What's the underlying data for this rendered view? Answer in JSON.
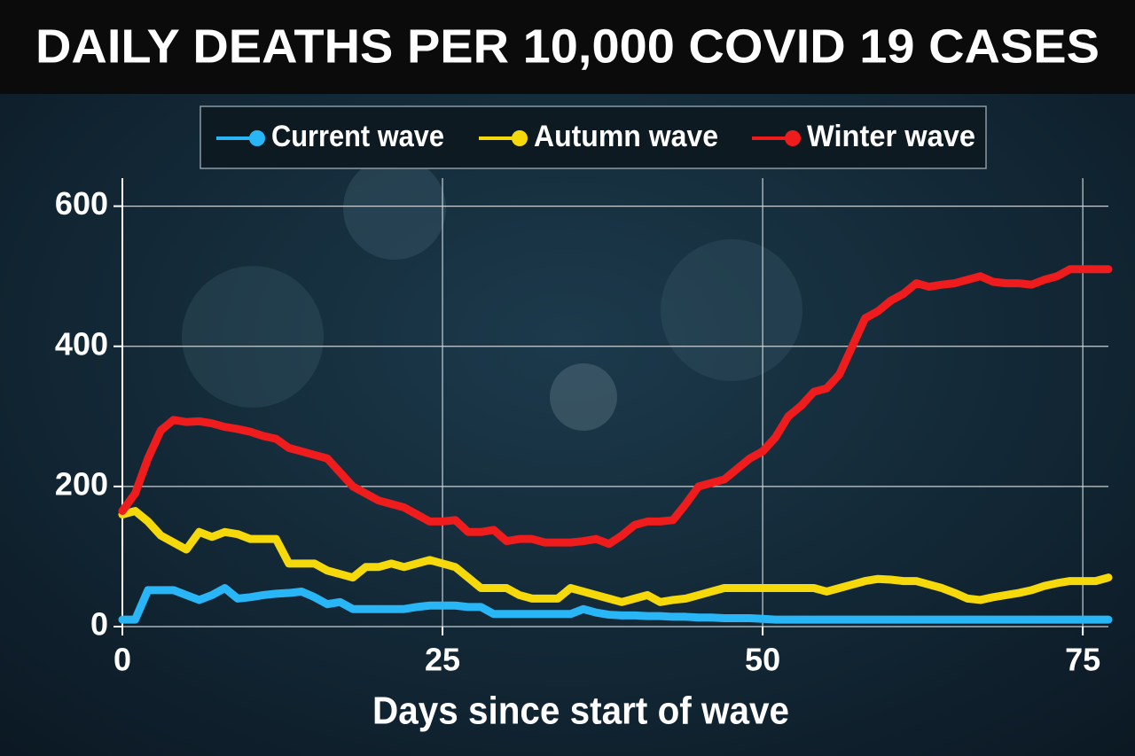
{
  "chart_data": {
    "type": "line",
    "title": "DAILY DEATHS PER 10,000 COVID 19 CASES",
    "x_label": "Days since start of wave",
    "x": [
      0,
      1,
      2,
      3,
      4,
      5,
      6,
      7,
      8,
      9,
      10,
      11,
      12,
      13,
      14,
      15,
      16,
      17,
      18,
      19,
      20,
      21,
      22,
      23,
      24,
      25,
      26,
      27,
      28,
      29,
      30,
      31,
      32,
      33,
      34,
      35,
      36,
      37,
      38,
      39,
      40,
      41,
      42,
      43,
      44,
      45,
      46,
      47,
      48,
      49,
      50,
      51,
      52,
      53,
      54,
      55,
      56,
      57,
      58,
      59,
      60,
      61,
      62,
      63,
      64,
      65,
      66,
      67,
      68,
      69,
      70,
      71,
      72,
      73,
      74,
      75,
      76,
      77
    ],
    "series": [
      {
        "name": "Current wave",
        "color": "#29b6f6",
        "values": [
          10,
          10,
          52,
          52,
          52,
          45,
          38,
          45,
          55,
          40,
          42,
          45,
          47,
          48,
          50,
          42,
          32,
          35,
          25,
          25,
          25,
          25,
          25,
          28,
          30,
          30,
          30,
          28,
          28,
          18,
          18,
          18,
          18,
          18,
          18,
          18,
          25,
          20,
          17,
          16,
          16,
          15,
          15,
          14,
          14,
          13,
          13,
          12,
          12,
          12,
          11,
          10,
          10,
          10,
          10,
          10,
          10,
          10,
          10,
          10,
          10,
          10,
          10,
          10,
          10,
          10,
          10,
          10,
          10,
          10,
          10,
          10,
          10,
          10,
          10,
          10,
          10,
          10
        ]
      },
      {
        "name": "Autumn wave",
        "color": "#f5d90a",
        "values": [
          160,
          165,
          150,
          130,
          120,
          110,
          135,
          128,
          135,
          132,
          125,
          125,
          125,
          90,
          90,
          90,
          80,
          75,
          70,
          85,
          85,
          90,
          85,
          90,
          95,
          90,
          85,
          70,
          55,
          55,
          55,
          45,
          40,
          40,
          40,
          55,
          50,
          45,
          40,
          35,
          40,
          45,
          35,
          38,
          40,
          45,
          50,
          55,
          55,
          55,
          55,
          55,
          55,
          55,
          55,
          50,
          55,
          60,
          65,
          68,
          67,
          65,
          65,
          60,
          55,
          48,
          40,
          38,
          42,
          45,
          48,
          52,
          58,
          62,
          65,
          65,
          65,
          70
        ]
      },
      {
        "name": "Winter wave",
        "color": "#ee1c1c",
        "values": [
          165,
          190,
          240,
          280,
          295,
          292,
          293,
          290,
          285,
          282,
          278,
          272,
          268,
          255,
          250,
          245,
          240,
          220,
          200,
          190,
          180,
          175,
          170,
          160,
          150,
          150,
          152,
          135,
          135,
          138,
          122,
          125,
          125,
          120,
          120,
          120,
          122,
          125,
          118,
          130,
          145,
          150,
          150,
          152,
          175,
          200,
          205,
          210,
          225,
          240,
          250,
          270,
          300,
          315,
          335,
          340,
          360,
          400,
          440,
          450,
          465,
          475,
          490,
          485,
          488,
          490,
          495,
          500,
          492,
          490,
          490,
          488,
          495,
          500,
          510,
          510,
          510,
          510
        ]
      }
    ],
    "xlim": [
      0,
      77
    ],
    "ylim": [
      0,
      640
    ],
    "xticks": [
      0,
      25,
      50,
      75
    ],
    "yticks": [
      0,
      200,
      400,
      600
    ],
    "grid": true
  }
}
